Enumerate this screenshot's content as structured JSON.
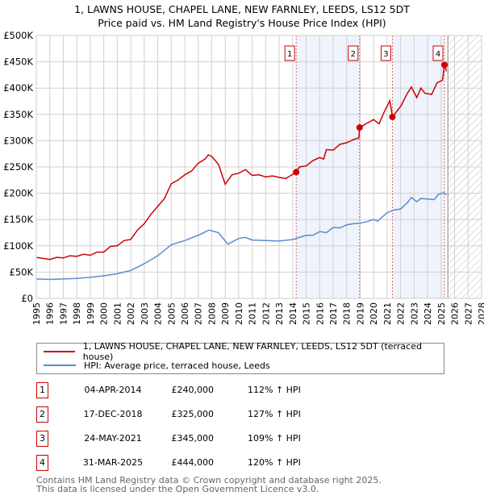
{
  "title": "1, LAWNS HOUSE, CHAPEL LANE, NEW FARNLEY, LEEDS, LS12 5DT",
  "subtitle": "Price paid vs. HM Land Registry's House Price Index (HPI)",
  "chart_data": {
    "type": "line",
    "xlim": [
      1995,
      2028
    ],
    "ylim": [
      0,
      500000
    ],
    "x_ticks": [
      "1995",
      "1996",
      "1997",
      "1998",
      "1999",
      "2000",
      "2001",
      "2002",
      "2003",
      "2004",
      "2005",
      "2006",
      "2007",
      "2008",
      "2009",
      "2010",
      "2011",
      "2012",
      "2013",
      "2014",
      "2015",
      "2016",
      "2017",
      "2018",
      "2019",
      "2020",
      "2021",
      "2022",
      "2023",
      "2024",
      "2025",
      "2026",
      "2027",
      "2028"
    ],
    "y_ticks": [
      {
        "v": 0,
        "label": "£0"
      },
      {
        "v": 50000,
        "label": "£50K"
      },
      {
        "v": 100000,
        "label": "£100K"
      },
      {
        "v": 150000,
        "label": "£150K"
      },
      {
        "v": 200000,
        "label": "£200K"
      },
      {
        "v": 250000,
        "label": "£250K"
      },
      {
        "v": 300000,
        "label": "£300K"
      },
      {
        "v": 350000,
        "label": "£350K"
      },
      {
        "v": 400000,
        "label": "£400K"
      },
      {
        "v": 450000,
        "label": "£450K"
      },
      {
        "v": 500000,
        "label": "£500K"
      }
    ],
    "grid": true,
    "forecast_hatch_from": 2025.5,
    "series": [
      {
        "name": "1, LAWNS HOUSE, CHAPEL LANE, NEW FARNLEY, LEEDS, LS12 5DT (terraced house)",
        "color": "#cc0000",
        "points": [
          [
            1995,
            78000
          ],
          [
            1996,
            74000
          ],
          [
            1996.5,
            78000
          ],
          [
            1997,
            77000
          ],
          [
            1997.5,
            81000
          ],
          [
            1998,
            80000
          ],
          [
            1998.5,
            84000
          ],
          [
            1999,
            82000
          ],
          [
            1999.5,
            88000
          ],
          [
            2000,
            88000
          ],
          [
            2000.5,
            99000
          ],
          [
            2001,
            100000
          ],
          [
            2001.5,
            110000
          ],
          [
            2002,
            112000
          ],
          [
            2002.5,
            130000
          ],
          [
            2003,
            142000
          ],
          [
            2003.5,
            160000
          ],
          [
            2004,
            175000
          ],
          [
            2004.5,
            190000
          ],
          [
            2005,
            218000
          ],
          [
            2005.5,
            225000
          ],
          [
            2006,
            235000
          ],
          [
            2006.5,
            242000
          ],
          [
            2007,
            257000
          ],
          [
            2007.5,
            265000
          ],
          [
            2007.75,
            273000
          ],
          [
            2008,
            270000
          ],
          [
            2008.5,
            255000
          ],
          [
            2009,
            217000
          ],
          [
            2009.5,
            235000
          ],
          [
            2010,
            238000
          ],
          [
            2010.5,
            245000
          ],
          [
            2011,
            234000
          ],
          [
            2011.5,
            235000
          ],
          [
            2012,
            231000
          ],
          [
            2012.5,
            233000
          ],
          [
            2013,
            230000
          ],
          [
            2013.5,
            228000
          ],
          [
            2014,
            236000
          ],
          [
            2014.26,
            240000
          ],
          [
            2014.5,
            250000
          ],
          [
            2015,
            252000
          ],
          [
            2015.5,
            262000
          ],
          [
            2016,
            268000
          ],
          [
            2016.3,
            265000
          ],
          [
            2016.5,
            283000
          ],
          [
            2017,
            282000
          ],
          [
            2017.5,
            293000
          ],
          [
            2018,
            296000
          ],
          [
            2018.5,
            302000
          ],
          [
            2018.9,
            305000
          ],
          [
            2018.96,
            325000
          ],
          [
            2019.5,
            333000
          ],
          [
            2020,
            340000
          ],
          [
            2020.4,
            332000
          ],
          [
            2020.7,
            350000
          ],
          [
            2021.2,
            376000
          ],
          [
            2021.4,
            345000
          ],
          [
            2021.6,
            352000
          ],
          [
            2022,
            365000
          ],
          [
            2022.5,
            390000
          ],
          [
            2022.8,
            402000
          ],
          [
            2023.2,
            382000
          ],
          [
            2023.5,
            400000
          ],
          [
            2023.8,
            390000
          ],
          [
            2024.3,
            388000
          ],
          [
            2024.7,
            410000
          ],
          [
            2025.1,
            415000
          ],
          [
            2025.25,
            444000
          ],
          [
            2025.4,
            432000
          ]
        ]
      },
      {
        "name": "HPI: Average price, terraced house, Leeds",
        "color": "#5b8bd0",
        "points": [
          [
            1995,
            37000
          ],
          [
            1996,
            36000
          ],
          [
            1997,
            37000
          ],
          [
            1998,
            38000
          ],
          [
            1999,
            40000
          ],
          [
            2000,
            43000
          ],
          [
            2001,
            47000
          ],
          [
            2002,
            53000
          ],
          [
            2003,
            66000
          ],
          [
            2004,
            81000
          ],
          [
            2005,
            102000
          ],
          [
            2006,
            110000
          ],
          [
            2007,
            120000
          ],
          [
            2007.8,
            130000
          ],
          [
            2008.5,
            125000
          ],
          [
            2009.2,
            103000
          ],
          [
            2010,
            114000
          ],
          [
            2010.5,
            116000
          ],
          [
            2011,
            111000
          ],
          [
            2012,
            110000
          ],
          [
            2013,
            109000
          ],
          [
            2014,
            112000
          ],
          [
            2014.5,
            116000
          ],
          [
            2015,
            120000
          ],
          [
            2015.5,
            120000
          ],
          [
            2016,
            127000
          ],
          [
            2016.5,
            125000
          ],
          [
            2017,
            135000
          ],
          [
            2017.5,
            134000
          ],
          [
            2018,
            140000
          ],
          [
            2018.5,
            142000
          ],
          [
            2019,
            143000
          ],
          [
            2019.5,
            146000
          ],
          [
            2020,
            150000
          ],
          [
            2020.3,
            147000
          ],
          [
            2021,
            163000
          ],
          [
            2021.5,
            168000
          ],
          [
            2022,
            170000
          ],
          [
            2022.5,
            182000
          ],
          [
            2022.8,
            192000
          ],
          [
            2023.2,
            184000
          ],
          [
            2023.5,
            190000
          ],
          [
            2024.5,
            188000
          ],
          [
            2024.8,
            198000
          ],
          [
            2025.2,
            201000
          ],
          [
            2025.4,
            197000
          ]
        ]
      }
    ],
    "sales": [
      {
        "id": "1",
        "x": 2014.26,
        "y": 240000
      },
      {
        "id": "2",
        "x": 2018.96,
        "y": 325000
      },
      {
        "id": "3",
        "x": 2021.39,
        "y": 345000
      },
      {
        "id": "4",
        "x": 2025.25,
        "y": 444000
      }
    ],
    "shaded_ranges": [
      [
        2014.26,
        2018.96
      ],
      [
        2021.39,
        2025.25
      ]
    ]
  },
  "legend": [
    {
      "label": "1, LAWNS HOUSE, CHAPEL LANE, NEW FARNLEY, LEEDS, LS12 5DT (terraced house)",
      "color": "#cc0000"
    },
    {
      "label": "HPI: Average price, terraced house, Leeds",
      "color": "#5b8bd0"
    }
  ],
  "transactions": [
    {
      "num": "1",
      "date": "04-APR-2014",
      "price": "£240,000",
      "hpi": "112% ↑ HPI"
    },
    {
      "num": "2",
      "date": "17-DEC-2018",
      "price": "£325,000",
      "hpi": "127% ↑ HPI"
    },
    {
      "num": "3",
      "date": "24-MAY-2021",
      "price": "£345,000",
      "hpi": "109% ↑ HPI"
    },
    {
      "num": "4",
      "date": "31-MAR-2025",
      "price": "£444,000",
      "hpi": "120% ↑ HPI"
    }
  ],
  "footer": [
    "Contains HM Land Registry data © Crown copyright and database right 2025.",
    "This data is licensed under the Open Government Licence v3.0."
  ]
}
